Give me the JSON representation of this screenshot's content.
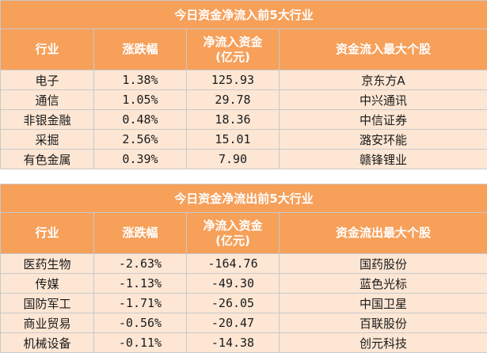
{
  "inflow": {
    "title": "今日资金净流入前5大行业",
    "headers": [
      "行业",
      "涨跌幅",
      "净流入资金\n(亿元)",
      "资金流入最大个股"
    ],
    "rows": [
      [
        "电子",
        "1.38%",
        "125.93",
        "京东方A"
      ],
      [
        "通信",
        "1.05%",
        "29.78",
        "中兴通讯"
      ],
      [
        "非银金融",
        "0.48%",
        "18.36",
        "中信证券"
      ],
      [
        "采掘",
        "2.56%",
        "15.01",
        "潞安环能"
      ],
      [
        "有色金属",
        "0.39%",
        "7.90",
        "赣锋锂业"
      ]
    ]
  },
  "outflow": {
    "title": "今日资金净流出前5大行业",
    "headers": [
      "行业",
      "涨跌幅",
      "净流入资金\n(亿元)",
      "资金流出最大个股"
    ],
    "rows": [
      [
        "医药生物",
        "-2.63%",
        "-164.76",
        "国药股份"
      ],
      [
        "传媒",
        "-1.13%",
        "-49.30",
        "蓝色光标"
      ],
      [
        "国防军工",
        "-1.71%",
        "-26.05",
        "中国卫星"
      ],
      [
        "商业贸易",
        "-0.56%",
        "-20.47",
        "百联股份"
      ],
      [
        "机械设备",
        "-0.11%",
        "-14.38",
        "创元科技"
      ]
    ]
  },
  "colors": {
    "header_bg": "#f6a05a",
    "row_bg": "#fde6d4",
    "border": "#c9c9c9"
  }
}
